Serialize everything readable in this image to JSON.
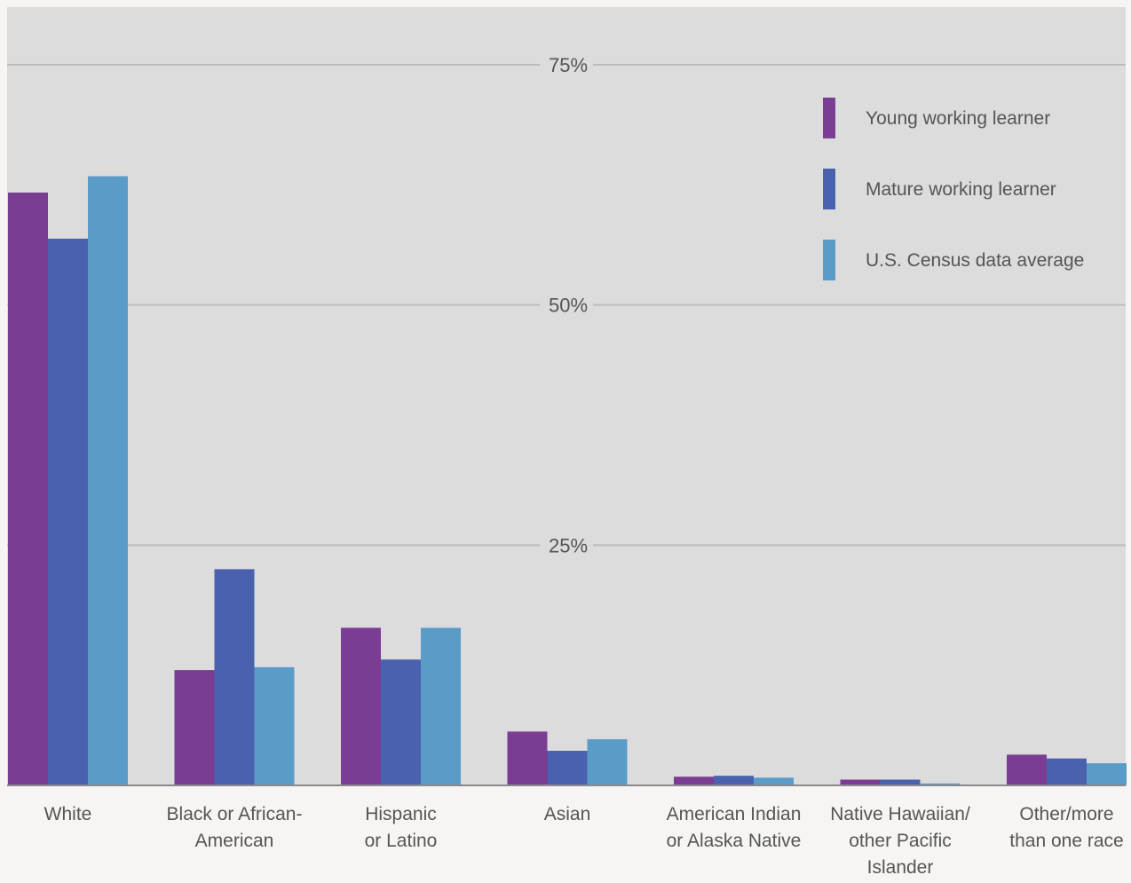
{
  "colors": {
    "plot_background": "#dcdcdd",
    "page_background": "#f6f5f3",
    "gridline": "#bcbcbe",
    "baseline": "#8a8a8c",
    "text": "#555555"
  },
  "chart_data": {
    "type": "bar",
    "title": "",
    "xlabel": "",
    "ylabel": "",
    "ylim": [
      0,
      81
    ],
    "yticks": [
      25,
      50,
      75
    ],
    "ytick_labels": [
      "25%",
      "50%",
      "75%"
    ],
    "grid": true,
    "legend_position": "top-right",
    "categories": [
      "White",
      "Black or African-American",
      "Hispanic or Latino",
      "Asian",
      "American Indian or Alaska Native",
      "Native Hawaiian/ other Pacific Islander",
      "Other/more than one race"
    ],
    "category_label_lines": [
      [
        "White"
      ],
      [
        "Black or African-",
        "American"
      ],
      [
        "Hispanic",
        "or Latino"
      ],
      [
        "Asian"
      ],
      [
        "American Indian",
        "or Alaska Native"
      ],
      [
        "Native Hawaiian/",
        "other Pacific",
        "Islander"
      ],
      [
        "Other/more",
        "than one race"
      ]
    ],
    "series": [
      {
        "name": "Young working learner",
        "color": "#7b3c94",
        "values": [
          61.7,
          12.0,
          16.4,
          5.6,
          0.9,
          0.6,
          3.2
        ]
      },
      {
        "name": "Mature working learner",
        "color": "#4a62ae",
        "values": [
          56.9,
          22.5,
          13.1,
          3.6,
          1.0,
          0.6,
          2.8
        ]
      },
      {
        "name": "U.S. Census data average",
        "color": "#5b9bc8",
        "values": [
          63.4,
          12.3,
          16.4,
          4.8,
          0.8,
          0.2,
          2.3
        ]
      }
    ]
  }
}
